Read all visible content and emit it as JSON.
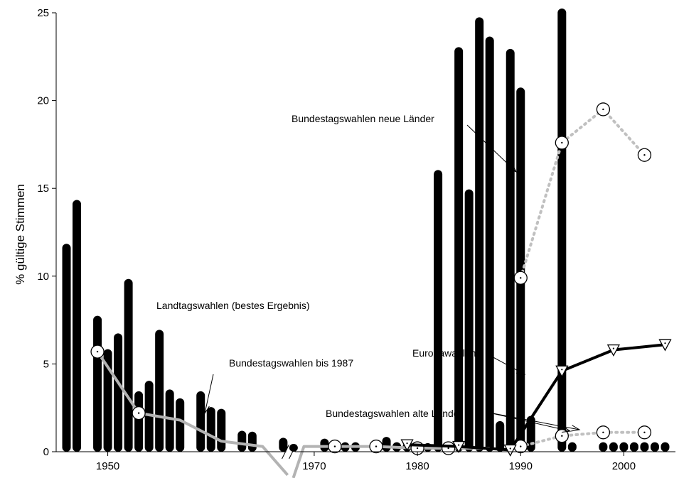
{
  "chart_data": {
    "type": "bar",
    "title": "",
    "xlabel": "",
    "ylabel": "% gültige Stimmen",
    "xlim": [
      1945,
      2005
    ],
    "ylim": [
      0,
      25
    ],
    "x_ticks": [
      1950,
      1960,
      1970,
      1980,
      1990,
      2000
    ],
    "x_tick_labels": [
      "1950",
      "",
      "1970",
      "1980",
      "1990",
      "2000"
    ],
    "y_ticks": [
      0,
      5,
      10,
      15,
      20,
      25
    ],
    "grid": false,
    "legend": "none",
    "axis_break_x": 1967.7,
    "colors": {
      "bars": "#000000",
      "bundestag_bis_1987": "#b3b3b3",
      "bundestag_neue": "#c0c0c0",
      "bundestag_alte": "#c0c0c0",
      "europawahlen": "#000000"
    },
    "bars_series": {
      "name": "Landtagswahlen (bestes Ergebnis)",
      "x": [
        1946,
        1947,
        1949,
        1950,
        1951,
        1952,
        1953,
        1954,
        1955,
        1956,
        1957,
        1959,
        1960,
        1961,
        1963,
        1964,
        1967,
        1968,
        1971,
        1972,
        1973,
        1974,
        1976,
        1977,
        1978,
        1979,
        1980,
        1981,
        1982,
        1983,
        1984,
        1985,
        1986,
        1987,
        1988,
        1989,
        1990,
        1991,
        1994,
        1995,
        1998,
        1999,
        2000,
        2001,
        2002,
        2003,
        2004
      ],
      "values": [
        11.6,
        14.1,
        7.5,
        5.6,
        6.5,
        9.6,
        3.2,
        3.8,
        6.7,
        3.3,
        2.8,
        3.2,
        2.3,
        2.2,
        0.95,
        0.9,
        0.55,
        0.2,
        0.5,
        0.3,
        0.3,
        0.3,
        0.3,
        0.6,
        0.3,
        0.3,
        0.2,
        0.25,
        15.8,
        0.3,
        22.8,
        14.7,
        24.5,
        23.4,
        1.5,
        22.7,
        20.5,
        1.8,
        25.0,
        0.3,
        0.3,
        0.3,
        0.3,
        0.3,
        0.3,
        0.3,
        0.3
      ]
    },
    "line_series": [
      {
        "name": "Bundestagswahlen bis 1987",
        "x": [
          1949,
          1953,
          1957,
          1961,
          1965,
          1969,
          1972,
          1976,
          1980,
          1983,
          1987
        ],
        "values": [
          5.7,
          2.2,
          1.8,
          0.6,
          0.3,
          0.3,
          0.3,
          0.3,
          0.2,
          0.2,
          0.2
        ]
      },
      {
        "name": "Bundestagswahlen neue Länder",
        "x": [
          1990,
          1994,
          1998,
          2002
        ],
        "values": [
          9.9,
          17.6,
          19.5,
          16.9
        ]
      },
      {
        "name": "Bundestagswahlen alte Länder",
        "x": [
          1990,
          1994,
          1998,
          2002
        ],
        "values": [
          0.3,
          0.9,
          1.1,
          1.1
        ]
      },
      {
        "name": "Europawahlen",
        "x": [
          1979,
          1984,
          1989,
          1994,
          1999,
          2004
        ],
        "values": [
          0.4,
          0.3,
          0.1,
          4.6,
          5.8,
          6.1
        ]
      }
    ],
    "annotations": [
      {
        "text": "Landtagswahlen (bestes Ergebnis)"
      },
      {
        "text": "Bundestagswahlen bis 1987"
      },
      {
        "text": "Bundestagswahlen neue Länder"
      },
      {
        "text": "Europawahlen"
      },
      {
        "text": "Bundestagswahlen alte Länder"
      }
    ]
  }
}
